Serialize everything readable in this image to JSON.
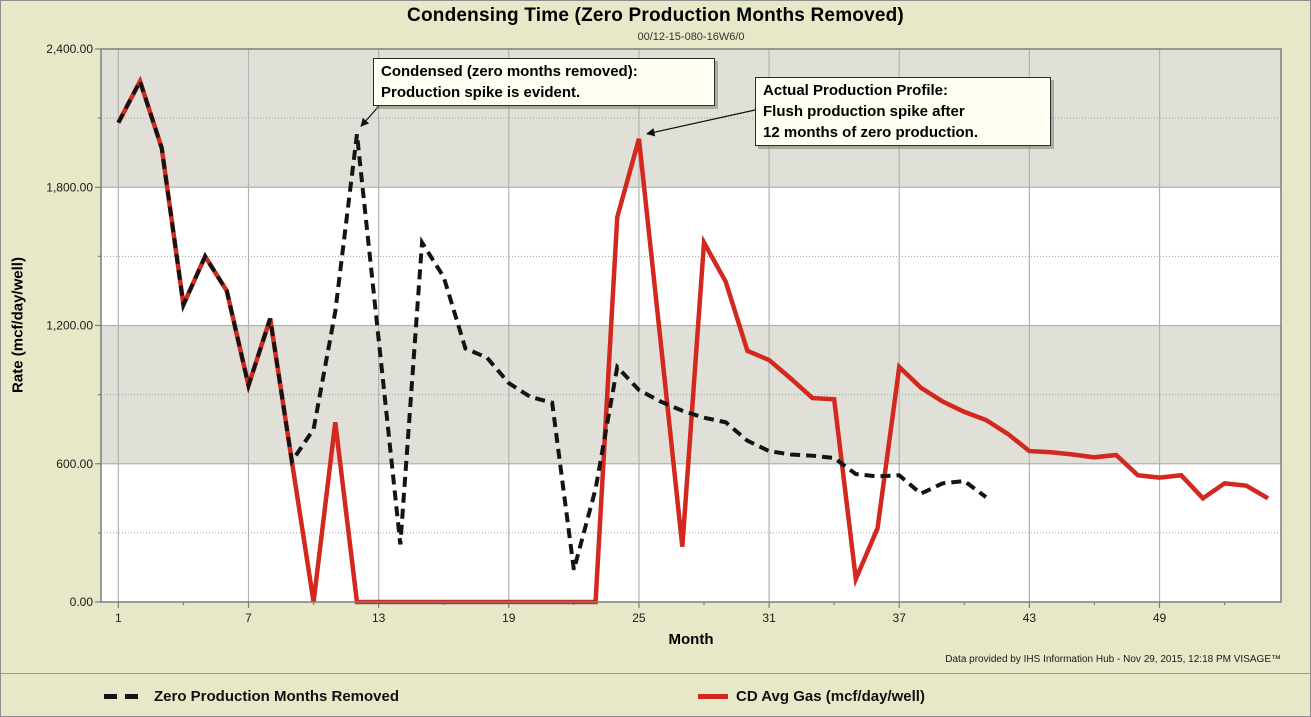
{
  "title": "Condensing Time (Zero Production Months Removed)",
  "subtitle": "00/12-15-080-16W6/0",
  "footer": "Data provided by IHS Information Hub - Nov 29, 2015, 12:18 PM VISAGE™",
  "axes": {
    "x_title": "Month",
    "y_title": "Rate (mcf/day/well)",
    "x_tick_labels": [
      "1",
      "7",
      "13",
      "19",
      "25",
      "31",
      "37",
      "43",
      "49"
    ],
    "y_tick_labels": [
      "0.00",
      "600.00",
      "1,200.00",
      "1,800.00",
      "2,400.00"
    ]
  },
  "annotations": [
    {
      "lines": [
        "Condensed (zero months removed):",
        "Production spike is evident."
      ],
      "target": {
        "series": 0,
        "month": 12
      }
    },
    {
      "lines": [
        "Actual Production Profile:",
        "Flush production spike after",
        "12 months of zero production."
      ],
      "target": {
        "series": 1,
        "month": 25
      }
    }
  ],
  "legend": [
    {
      "label": "Zero Production Months Removed",
      "color": "#141414",
      "dash": true
    },
    {
      "label": "CD Avg Gas (mcf/day/well)",
      "color": "#d3281e",
      "dash": false
    }
  ],
  "colors": {
    "background": "#e7e8c8",
    "plot_white": "#ffffff",
    "plot_band": "#e0e0d8",
    "grid": "#b3b3b3",
    "minor_grid": "#9f9f9f",
    "axis": "#7d7d7d",
    "series_black": "#141414",
    "series_red": "#d3281e",
    "annotation_bg": "#fffff1",
    "arrow": "#111111"
  },
  "chart_data": {
    "type": "line",
    "title": "Condensing Time (Zero Production Months Removed)",
    "xlabel": "Month",
    "ylabel": "Rate (mcf/day/well)",
    "xlim": [
      0.2,
      54.6
    ],
    "ylim": [
      0,
      2400
    ],
    "x_major_ticks": [
      1,
      7,
      13,
      19,
      25,
      31,
      37,
      43,
      49
    ],
    "y_major_ticks": [
      0,
      600,
      1200,
      1800,
      2400
    ],
    "y_minor_step": 300,
    "x_minor_step": 3,
    "bands": [
      [
        1800,
        2400
      ],
      [
        600,
        1200
      ]
    ],
    "grid": true,
    "legend_position": "bottom",
    "series": [
      {
        "name": "Zero Production Months Removed",
        "color": "#141414",
        "dash": true,
        "start_month": 1,
        "values": [
          2080,
          2260,
          1970,
          1290,
          1500,
          1350,
          940,
          1230,
          610,
          750,
          1260,
          2030,
          1140,
          250,
          1560,
          1410,
          1100,
          1060,
          950,
          890,
          865,
          140,
          490,
          1020,
          920,
          870,
          830,
          800,
          780,
          700,
          655,
          640,
          635,
          625,
          555,
          545,
          550,
          470,
          515,
          525,
          455
        ]
      },
      {
        "name": "CD Avg Gas (mcf/day/well)",
        "color": "#d3281e",
        "dash": false,
        "start_month": 1,
        "values": [
          2080,
          2260,
          1970,
          1290,
          1500,
          1350,
          940,
          1230,
          610,
          0,
          780,
          0,
          0,
          0,
          0,
          0,
          0,
          0,
          0,
          0,
          0,
          0,
          0,
          1670,
          2010,
          1130,
          240,
          1560,
          1390,
          1090,
          1050,
          970,
          885,
          880,
          100,
          320,
          1020,
          930,
          870,
          825,
          790,
          730,
          655,
          650,
          640,
          628,
          638,
          550,
          540,
          550,
          450,
          515,
          505,
          450
        ]
      }
    ]
  }
}
